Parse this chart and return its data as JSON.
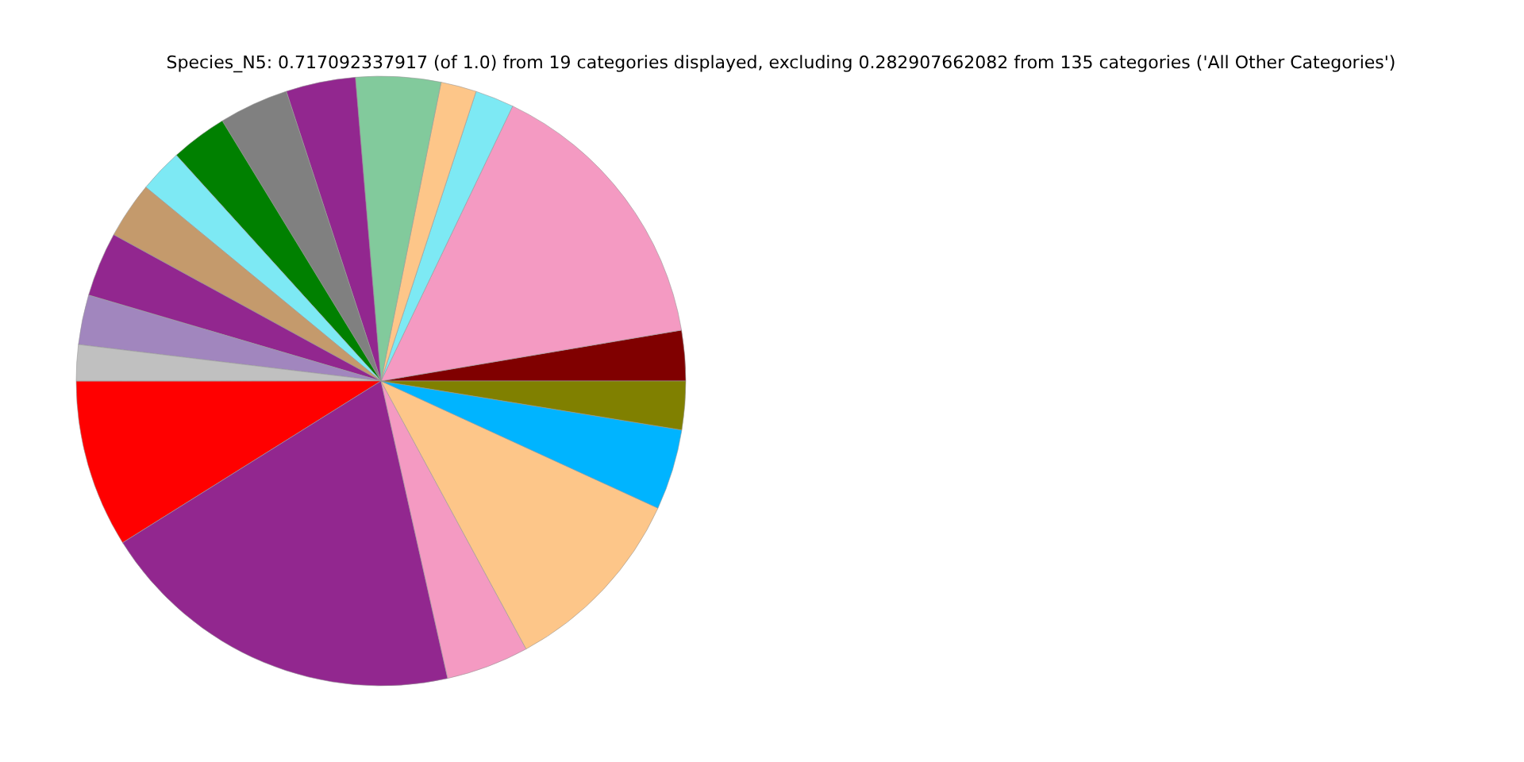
{
  "chart_data": {
    "type": "pie",
    "title": "Species_N5: 0.717092337917 (of 1.0) from 19 categories displayed, excluding 0.282907662082 from 135 categories ('All Other Categories')",
    "categories": [
      null,
      null,
      null,
      null,
      null,
      null,
      null,
      null,
      null,
      null,
      null,
      null,
      null,
      null,
      null,
      null,
      null,
      null,
      null
    ],
    "values": [
      2.67,
      15.22,
      2.06,
      1.89,
      4.5,
      3.69,
      3.69,
      3.0,
      2.31,
      3.0,
      3.42,
      2.64,
      1.92,
      8.89,
      19.61,
      4.39,
      10.25,
      4.28,
      2.57
    ],
    "colors": [
      "#800000",
      "#f49ac2",
      "#7de9f4",
      "#fdc689",
      "#82ca9c",
      "#92278f",
      "#808080",
      "#008000",
      "#7de9f4",
      "#c49a6c",
      "#92278f",
      "#a186be",
      "#c0c0c0",
      "#ff0000",
      "#92278f",
      "#f49ac2",
      "#fdc689",
      "#00b4ff",
      "#808000"
    ],
    "legend": false
  }
}
